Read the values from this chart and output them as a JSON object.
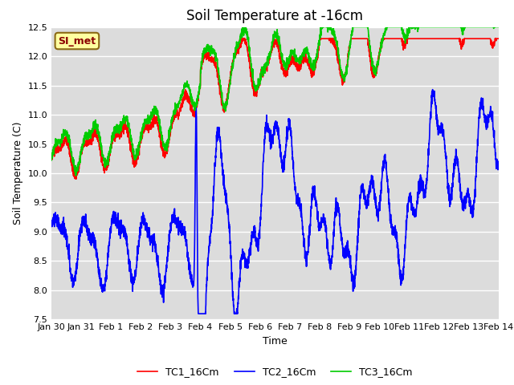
{
  "title": "Soil Temperature at -16cm",
  "xlabel": "Time",
  "ylabel": "Soil Temperature (C)",
  "ylim": [
    7.5,
    12.5
  ],
  "xlim_days": [
    0,
    15
  ],
  "bg_color": "#dcdcdc",
  "tc1_color": "#ff0000",
  "tc2_color": "#0000ff",
  "tc3_color": "#00cc00",
  "tc1_label": "TC1_16Cm",
  "tc2_label": "TC2_16Cm",
  "tc3_label": "TC3_16Cm",
  "annotation_text": "SI_met",
  "annotation_bg": "#ffffa0",
  "annotation_border": "#8b6914",
  "x_tick_labels": [
    "Jan 30",
    "Jan 31",
    "Feb 1",
    "Feb 2",
    "Feb 3",
    "Feb 4",
    "Feb 5",
    "Feb 6",
    "Feb 7",
    "Feb 8",
    "Feb 9",
    "Feb 10",
    "Feb 11",
    "Feb 12",
    "Feb 13",
    "Feb 14"
  ],
  "x_tick_positions": [
    0,
    1,
    2,
    3,
    4,
    5,
    6,
    7,
    8,
    9,
    10,
    11,
    12,
    13,
    14,
    15
  ],
  "title_fontsize": 12,
  "axis_fontsize": 9,
  "tick_fontsize": 8,
  "legend_fontsize": 9,
  "linewidth": 1.2
}
